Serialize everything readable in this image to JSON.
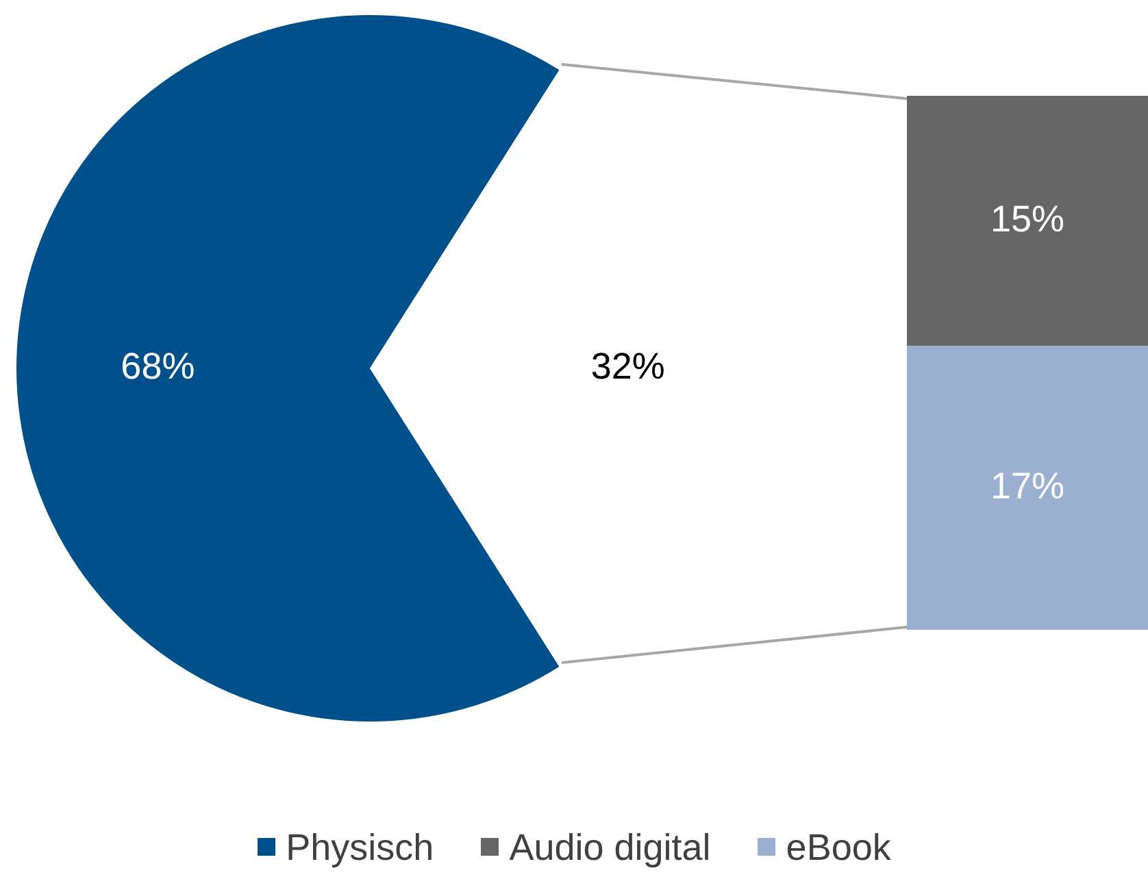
{
  "chart_data": [
    {
      "type": "pie",
      "categories": [
        "Physisch",
        null
      ],
      "values": [
        68,
        32
      ],
      "colors": [
        "#00508c",
        "#ffffff"
      ],
      "value_labels": [
        "68%",
        "32%"
      ],
      "legend": "bottom"
    },
    {
      "type": "bar",
      "stacked": true,
      "categories": [
        null
      ],
      "tick_labels": false,
      "series": [
        {
          "name": "eBook",
          "color": "#9bb0d0",
          "values": [
            17
          ],
          "value_labels": [
            "17%"
          ]
        },
        {
          "name": "Audio digital",
          "color": "#666666",
          "values": [
            15
          ],
          "value_labels": [
            "15%"
          ]
        }
      ],
      "legend": "bottom"
    }
  ]
}
